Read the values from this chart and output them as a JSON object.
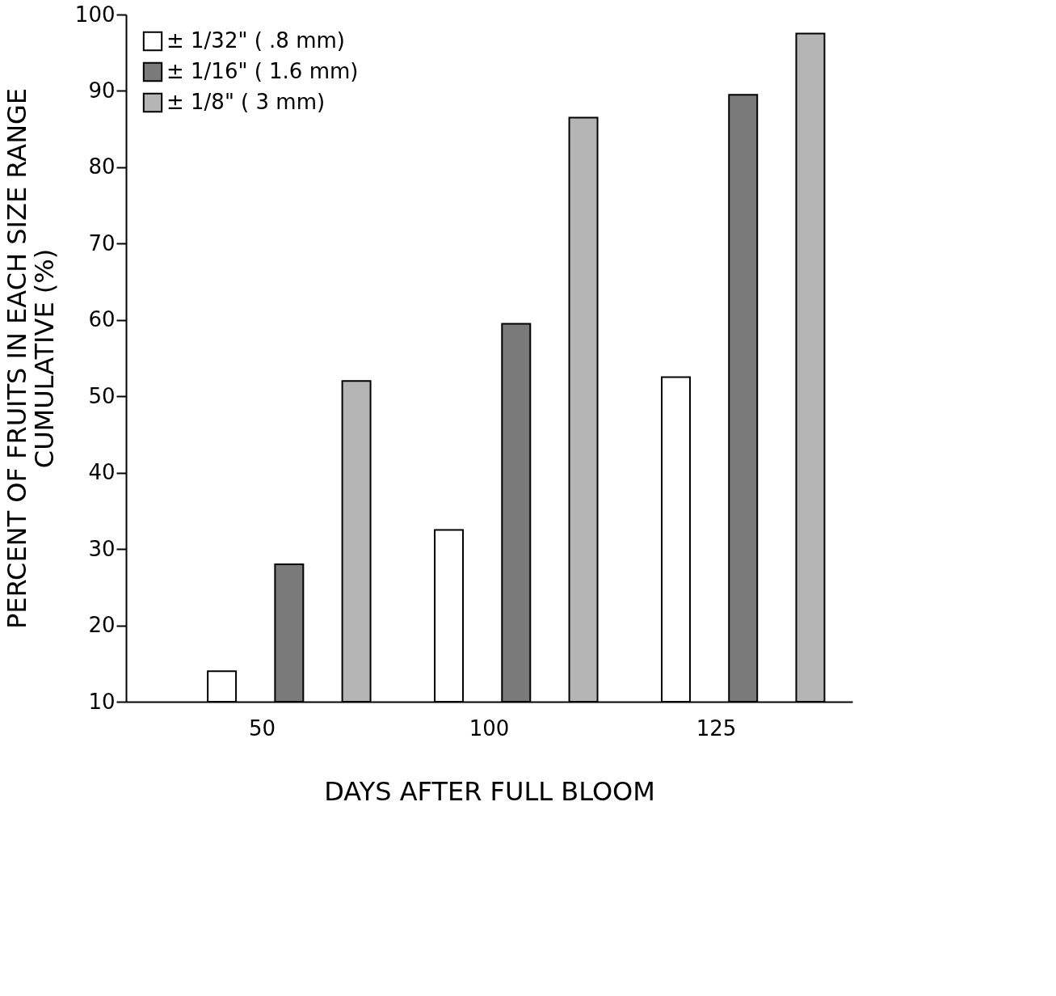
{
  "chart_data": {
    "type": "bar",
    "xlabel": "DAYS AFTER FULL BLOOM",
    "ylabel": "PERCENT OF FRUITS IN EACH SIZE RANGE\nCUMULATIVE (%)",
    "categories": [
      "50",
      "100",
      "125"
    ],
    "series": [
      {
        "name": "± 1/32\" ( .8 mm)",
        "color": "#ffffff",
        "values": [
          14,
          32.5,
          52.5
        ]
      },
      {
        "name": "± 1/16\" ( 1.6 mm)",
        "color": "#7a7a7a",
        "values": [
          28,
          59.5,
          89.5
        ]
      },
      {
        "name": "± 1/8\" ( 3 mm)",
        "color": "#b5b5b5",
        "values": [
          52,
          86.5,
          97.5
        ]
      }
    ],
    "ylim": [
      10,
      100
    ],
    "yticks": [
      10,
      20,
      30,
      40,
      50,
      60,
      70,
      80,
      90,
      100
    ],
    "grid": false,
    "legend": "top left"
  }
}
